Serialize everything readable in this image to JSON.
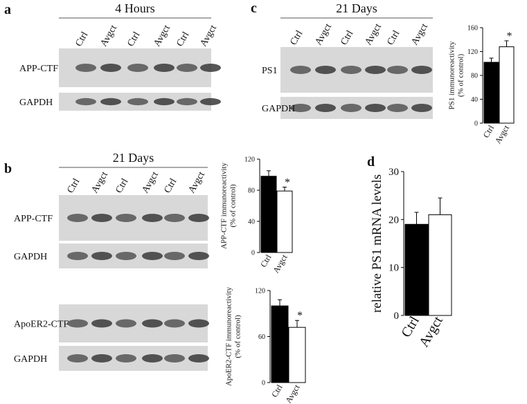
{
  "blots": [
    {
      "label": "a",
      "title": "4 Hours",
      "lanes": [
        "Ctrl",
        "Avgct",
        "Ctrl",
        "Avgct",
        "Ctrl",
        "Avgct"
      ],
      "rows": [
        "APP-CTF",
        "GAPDH"
      ]
    },
    {
      "label": "b",
      "title": "21 Days",
      "lanes": [
        "Ctrl",
        "Avgct",
        "Ctrl",
        "Avgct",
        "Ctrl",
        "Avgct"
      ],
      "rows": [
        "APP-CTF",
        "GAPDH",
        "ApoER2-CTF",
        "GAPDH"
      ]
    },
    {
      "label": "c",
      "title": "21 Days",
      "lanes": [
        "Ctrl",
        "Avgct",
        "Ctrl",
        "Avgct",
        "Ctrl",
        "Avgct"
      ],
      "rows": [
        "PS1",
        "GAPDH"
      ]
    }
  ],
  "panel_d_label": "d",
  "chart_data": [
    {
      "type": "bar",
      "ylabel": [
        "PS1 immunoreactivity",
        "(% of control)"
      ],
      "categories": [
        "Ctrl",
        "Avgct"
      ],
      "values": [
        102,
        128
      ],
      "errors": [
        7,
        10
      ],
      "colors": [
        "#000000",
        "#ffffff"
      ],
      "ylim": [
        0,
        160
      ],
      "yticks": [
        0,
        40,
        80,
        120,
        160
      ],
      "annotation": "*"
    },
    {
      "type": "bar",
      "ylabel": [
        "APP-CTF immunoreactivity",
        "(% of control)"
      ],
      "categories": [
        "Ctrl",
        "Avgct"
      ],
      "values": [
        98,
        79
      ],
      "errors": [
        7,
        5
      ],
      "colors": [
        "#000000",
        "#ffffff"
      ],
      "ylim": [
        0,
        120
      ],
      "yticks": [
        0,
        40,
        80,
        120
      ],
      "annotation": "*"
    },
    {
      "type": "bar",
      "ylabel": [
        "ApoER2-CTF immunoreactivity",
        "(% of control)"
      ],
      "categories": [
        "Ctrl",
        "Avgct"
      ],
      "values": [
        100,
        72
      ],
      "errors": [
        8,
        9
      ],
      "colors": [
        "#000000",
        "#ffffff"
      ],
      "ylim": [
        0,
        120
      ],
      "yticks": [
        0,
        60,
        120
      ],
      "annotation": "*"
    },
    {
      "type": "bar",
      "ylabel": [
        "relative PS1 mRNA levels"
      ],
      "categories": [
        "Ctrl",
        "Avgct"
      ],
      "values": [
        19,
        21
      ],
      "errors": [
        2.5,
        3.5
      ],
      "colors": [
        "#000000",
        "#ffffff"
      ],
      "ylim": [
        0,
        30
      ],
      "yticks": [
        0,
        10,
        20,
        30
      ]
    }
  ]
}
